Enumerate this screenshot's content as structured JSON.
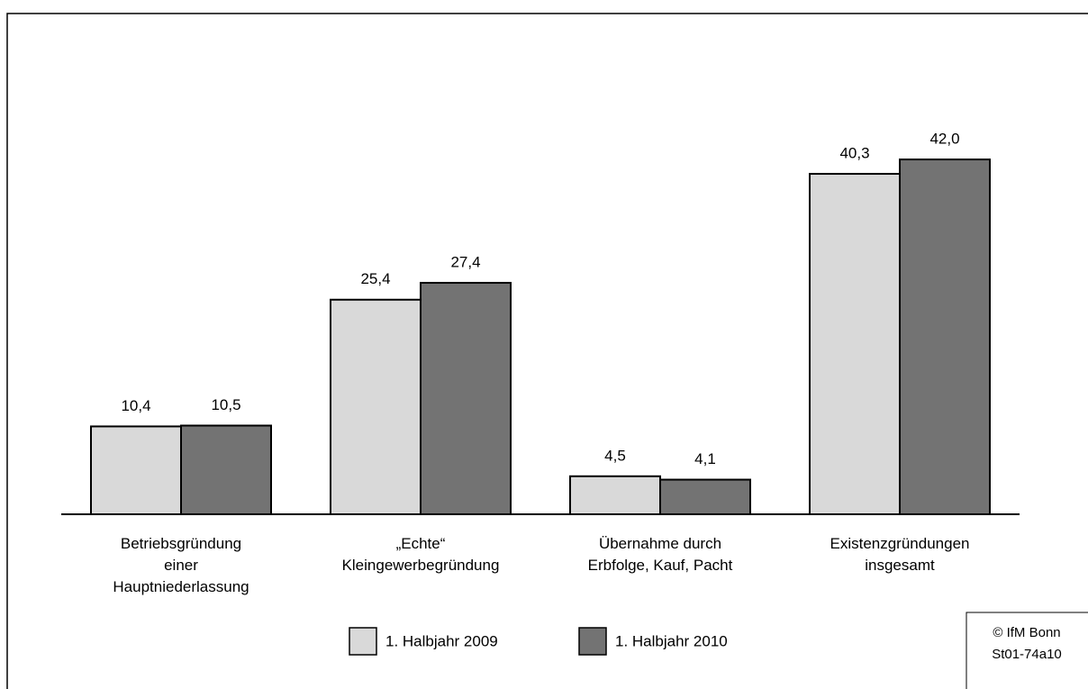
{
  "chart_data": {
    "type": "bar",
    "categories": [
      "Betriebsgründung\neiner\nHauptniederlassung",
      "„Echte“\nKleingewerbegründung",
      "Übernahme durch\nErbfolge, Kauf, Pacht",
      "Existenzgründungen\ninsgesamt"
    ],
    "series": [
      {
        "name": "1. Halbjahr 2009",
        "color": "#d9d9d9",
        "values": [
          10.4,
          25.4,
          4.5,
          40.3
        ],
        "value_labels": [
          "10,4",
          "25,4",
          "4,5",
          "40,3"
        ]
      },
      {
        "name": "1. Halbjahr 2010",
        "color": "#737373",
        "values": [
          10.5,
          27.4,
          4.1,
          42.0
        ],
        "value_labels": [
          "10,5",
          "27,4",
          "4,1",
          "42,0"
        ]
      }
    ],
    "ylim": [
      0,
      50
    ],
    "annotations": [
      "© IfM Bonn",
      "St01-74a10"
    ]
  }
}
